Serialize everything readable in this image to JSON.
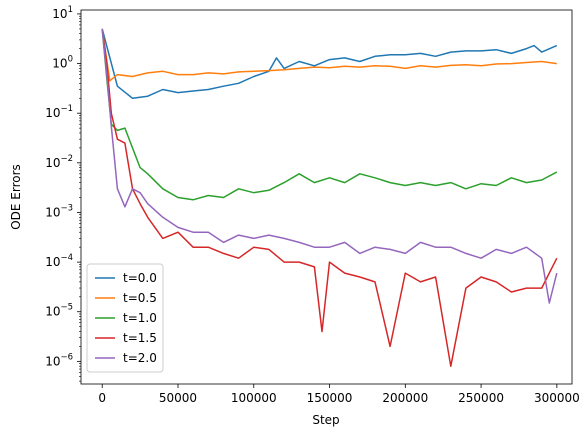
{
  "chart_data": {
    "type": "line",
    "title": "",
    "xlabel": "Step",
    "ylabel": "ODE Errors",
    "xlim": [
      -14000,
      310000
    ],
    "ylim": [
      3.5e-07,
      12
    ],
    "yscale": "log",
    "grid": false,
    "legend_position": "lower-left",
    "x_ticks": [
      0,
      50000,
      100000,
      150000,
      200000,
      250000,
      300000
    ],
    "x_tick_labels": [
      "0",
      "50000",
      "100000",
      "150000",
      "200000",
      "250000",
      "300000"
    ],
    "y_ticks": [
      1e-06,
      1e-05,
      0.0001,
      0.001,
      0.01,
      0.1,
      1,
      10
    ],
    "y_tick_base": "10",
    "y_tick_exponents": [
      "−6",
      "−5",
      "−4",
      "−3",
      "−2",
      "−1",
      "0",
      "1"
    ],
    "series": [
      {
        "name": "t=0.0",
        "color": "#1f77b4",
        "x": [
          0,
          10000,
          20000,
          30000,
          40000,
          50000,
          60000,
          70000,
          80000,
          90000,
          100000,
          110000,
          115000,
          120000,
          130000,
          140000,
          150000,
          160000,
          170000,
          180000,
          190000,
          200000,
          210000,
          220000,
          230000,
          240000,
          250000,
          260000,
          270000,
          280000,
          285000,
          290000,
          300000
        ],
        "y": [
          5,
          0.35,
          0.2,
          0.22,
          0.3,
          0.26,
          0.28,
          0.3,
          0.35,
          0.4,
          0.55,
          0.7,
          1.3,
          0.8,
          1.1,
          0.9,
          1.2,
          1.3,
          1.1,
          1.4,
          1.5,
          1.5,
          1.6,
          1.4,
          1.7,
          1.8,
          1.8,
          1.9,
          1.6,
          2.0,
          2.3,
          1.7,
          2.3
        ]
      },
      {
        "name": "t=0.5",
        "color": "#ff7f0e",
        "x": [
          0,
          5000,
          10000,
          20000,
          30000,
          40000,
          50000,
          60000,
          70000,
          80000,
          90000,
          100000,
          110000,
          120000,
          130000,
          140000,
          150000,
          160000,
          170000,
          180000,
          190000,
          200000,
          210000,
          220000,
          230000,
          240000,
          250000,
          260000,
          270000,
          280000,
          290000,
          300000
        ],
        "y": [
          5,
          0.45,
          0.6,
          0.55,
          0.65,
          0.7,
          0.6,
          0.6,
          0.65,
          0.62,
          0.68,
          0.7,
          0.72,
          0.75,
          0.8,
          0.85,
          0.82,
          0.88,
          0.85,
          0.9,
          0.88,
          0.8,
          0.9,
          0.85,
          0.92,
          0.95,
          0.9,
          0.98,
          1.0,
          1.05,
          1.1,
          1.0
        ]
      },
      {
        "name": "t=1.0",
        "color": "#2ca02c",
        "x": [
          0,
          3000,
          6000,
          10000,
          15000,
          20000,
          25000,
          30000,
          40000,
          50000,
          60000,
          70000,
          80000,
          90000,
          100000,
          110000,
          120000,
          130000,
          140000,
          150000,
          160000,
          170000,
          180000,
          190000,
          200000,
          210000,
          220000,
          230000,
          240000,
          250000,
          260000,
          270000,
          280000,
          290000,
          300000
        ],
        "y": [
          5,
          0.5,
          0.06,
          0.045,
          0.05,
          0.02,
          0.008,
          0.006,
          0.003,
          0.002,
          0.0018,
          0.0022,
          0.002,
          0.003,
          0.0025,
          0.0028,
          0.004,
          0.006,
          0.004,
          0.005,
          0.004,
          0.006,
          0.005,
          0.004,
          0.0035,
          0.004,
          0.0035,
          0.004,
          0.003,
          0.0038,
          0.0035,
          0.005,
          0.004,
          0.0045,
          0.0065
        ]
      },
      {
        "name": "t=1.5",
        "color": "#d62728",
        "x": [
          0,
          3000,
          6000,
          10000,
          15000,
          20000,
          25000,
          30000,
          40000,
          50000,
          60000,
          70000,
          80000,
          90000,
          100000,
          110000,
          120000,
          130000,
          140000,
          145000,
          150000,
          160000,
          170000,
          180000,
          190000,
          200000,
          210000,
          220000,
          230000,
          240000,
          250000,
          260000,
          270000,
          280000,
          290000,
          300000
        ],
        "y": [
          5,
          1.0,
          0.1,
          0.03,
          0.025,
          0.003,
          0.0015,
          0.0008,
          0.0003,
          0.0004,
          0.0002,
          0.0002,
          0.00015,
          0.00012,
          0.0002,
          0.00018,
          0.0001,
          0.0001,
          8e-05,
          4e-06,
          0.0001,
          6e-05,
          5e-05,
          4e-05,
          2e-06,
          6e-05,
          4e-05,
          5e-05,
          8e-07,
          3e-05,
          5e-05,
          4e-05,
          2.5e-05,
          3e-05,
          3e-05,
          0.00012
        ]
      },
      {
        "name": "t=2.0",
        "color": "#9467bd",
        "x": [
          0,
          3000,
          6000,
          10000,
          15000,
          20000,
          25000,
          30000,
          40000,
          50000,
          60000,
          70000,
          80000,
          90000,
          100000,
          110000,
          120000,
          130000,
          140000,
          150000,
          160000,
          170000,
          180000,
          190000,
          200000,
          210000,
          220000,
          230000,
          240000,
          250000,
          260000,
          270000,
          280000,
          290000,
          295000,
          300000
        ],
        "y": [
          5,
          0.6,
          0.055,
          0.003,
          0.0013,
          0.003,
          0.0025,
          0.0015,
          0.0008,
          0.0005,
          0.0004,
          0.0004,
          0.00025,
          0.00035,
          0.0003,
          0.00035,
          0.0003,
          0.00025,
          0.0002,
          0.0002,
          0.00025,
          0.00015,
          0.0002,
          0.00018,
          0.00015,
          0.00025,
          0.0002,
          0.0002,
          0.00015,
          0.00012,
          0.00018,
          0.00015,
          0.0002,
          0.00012,
          1.5e-05,
          6e-05
        ]
      }
    ]
  }
}
